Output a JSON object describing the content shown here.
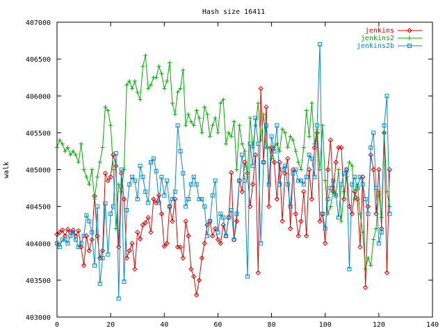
{
  "chart_data": {
    "type": "line",
    "title": "Hash size 16411",
    "xlabel": "",
    "ylabel": "walk",
    "xlim": [
      0,
      140
    ],
    "ylim": [
      403000,
      407000
    ],
    "xticks": [
      0,
      20,
      40,
      60,
      80,
      100,
      120,
      140
    ],
    "yticks": [
      403000,
      403500,
      404000,
      404500,
      405000,
      405500,
      406000,
      406500,
      407000
    ],
    "legend_position": "top-right",
    "grid": false,
    "series": [
      {
        "name": "jenkins",
        "color": "#dd0000",
        "marker": "diamond",
        "values": [
          404120,
          404150,
          404180,
          404100,
          404190,
          404150,
          404180,
          404100,
          404170,
          403950,
          403700,
          404100,
          403900,
          404050,
          404640,
          404100,
          403800,
          403900,
          404950,
          404850,
          404900,
          405200,
          405050,
          403950,
          404950,
          404600,
          403800,
          403900,
          404000,
          403650,
          404150,
          404060,
          404250,
          404280,
          404350,
          404150,
          404600,
          404550,
          404650,
          404400,
          403960,
          404000,
          404500,
          404300,
          404600,
          403950,
          403950,
          403800,
          404300,
          404100,
          403650,
          403550,
          403300,
          403500,
          403800,
          404000,
          404250,
          404300,
          404100,
          404200,
          404050,
          404000,
          404250,
          404100,
          404350,
          404960,
          404050,
          404300,
          404850,
          404700,
          405100,
          404950,
          404500,
          404800,
          405200,
          403600,
          406100,
          405100,
          405850,
          404500,
          405300,
          405100,
          404600,
          405100,
          404300,
          404950,
          405150,
          404200,
          405000,
          404400,
          404100,
          404300,
          404700,
          404100,
          405000,
          404600,
          405300,
          405500,
          404300,
          404400,
          404000,
          405000,
          405400,
          404700,
          405100,
          405300,
          405300,
          404600,
          405000,
          404500,
          404400,
          404700,
          404600,
          403950,
          404900,
          403400,
          404500,
          405200,
          405000,
          404400,
          405000,
          404200,
          405500,
          403600,
          405000
        ]
      },
      {
        "name": "jenkins2",
        "color": "#00aa00",
        "marker": "plus",
        "values": [
          405300,
          405400,
          405350,
          405250,
          405300,
          405200,
          405250,
          405200,
          405100,
          405350,
          405000,
          404900,
          404800,
          405000,
          404600,
          404900,
          405100,
          405300,
          405850,
          405800,
          405600,
          405000,
          404200,
          404800,
          404700,
          405000,
          406150,
          406200,
          406100,
          406200,
          406050,
          405950,
          406400,
          406550,
          406100,
          406150,
          406250,
          406250,
          406400,
          406300,
          406100,
          406200,
          406450,
          405900,
          405750,
          406050,
          406100,
          406350,
          405600,
          405750,
          405650,
          405600,
          405800,
          405700,
          405500,
          405850,
          405750,
          405450,
          405600,
          405700,
          405500,
          405900,
          405950,
          405350,
          405500,
          405450,
          405650,
          405000,
          405600,
          405350,
          405250,
          404900,
          405700,
          405300,
          405600,
          405900,
          405400,
          405750,
          405300,
          405300,
          405150,
          405300,
          405350,
          405250,
          405550,
          405500,
          405300,
          405450,
          405400,
          405250,
          405100,
          405000,
          405300,
          405800,
          405450,
          405900,
          405350,
          405550,
          405000,
          405600,
          404850,
          404400,
          404500,
          404700,
          404650,
          405000,
          404300,
          404700,
          404900,
          405100,
          405050,
          404600,
          404800,
          404400,
          404150,
          403650,
          403800,
          403700,
          404050,
          404200,
          404700,
          404350,
          405500,
          404700,
          404500
        ]
      },
      {
        "name": "jenkins2b",
        "color": "#0088cc",
        "marker": "square",
        "values": [
          404000,
          403950,
          404050,
          404050,
          404000,
          404100,
          404150,
          404050,
          403950,
          404000,
          404100,
          404380,
          404300,
          404150,
          403700,
          404500,
          403450,
          403800,
          404540,
          403850,
          404400,
          404500,
          405220,
          403250,
          405000,
          403480,
          404450,
          404800,
          404900,
          404850,
          404600,
          405050,
          404900,
          404700,
          404550,
          405100,
          405150,
          404980,
          404550,
          404900,
          404650,
          404850,
          404500,
          404600,
          404700,
          405600,
          405250,
          404950,
          404500,
          404600,
          404800,
          404900,
          404800,
          404600,
          404600,
          404500,
          404100,
          404300,
          404650,
          404850,
          404150,
          404400,
          404350,
          404100,
          404350,
          404450,
          404050,
          404400,
          404850,
          405200,
          404850,
          403550,
          405350,
          405050,
          405700,
          405350,
          404000,
          405100,
          405600,
          404800,
          405450,
          405250,
          405600,
          404800,
          405000,
          405050,
          404800,
          404500,
          404950,
          405000,
          404850,
          404850,
          404800,
          404900,
          405200,
          405150,
          404900,
          405600,
          406700,
          404400,
          404200,
          404600,
          404750,
          404850,
          404650,
          404350,
          404800,
          404950,
          405000,
          403650,
          404800,
          404900,
          404750,
          404900,
          404800,
          404600,
          404400,
          405300,
          405500,
          404750,
          404000,
          404150,
          405600,
          406000,
          404400
        ]
      }
    ]
  }
}
